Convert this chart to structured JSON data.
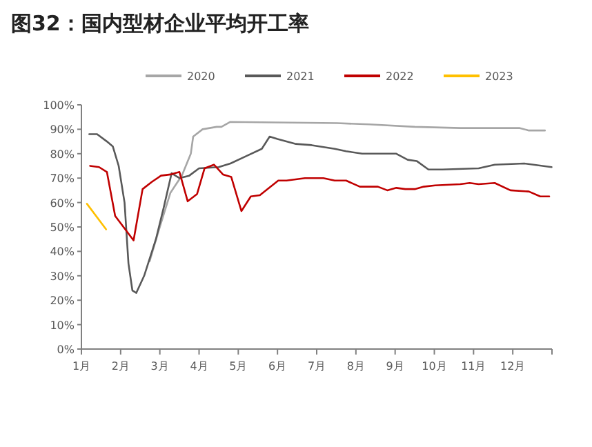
{
  "chart_data": {
    "type": "line",
    "title": "图32：国内型材企业平均开工率",
    "xlim": [
      1,
      13
    ],
    "xticks": [
      {
        "value": 1,
        "label": "1月"
      },
      {
        "value": 2,
        "label": "2月"
      },
      {
        "value": 3,
        "label": "3月"
      },
      {
        "value": 4,
        "label": "4月"
      },
      {
        "value": 5,
        "label": "5月"
      },
      {
        "value": 6,
        "label": "6月"
      },
      {
        "value": 7,
        "label": "7月"
      },
      {
        "value": 8,
        "label": "8月"
      },
      {
        "value": 9,
        "label": "9月"
      },
      {
        "value": 10,
        "label": "10月"
      },
      {
        "value": 11,
        "label": "11月"
      },
      {
        "value": 12,
        "label": "12月"
      },
      {
        "value": 13,
        "label": null
      }
    ],
    "ylim": [
      0,
      100
    ],
    "yticks": [
      {
        "value": 0,
        "label": "0%"
      },
      {
        "value": 10,
        "label": "10%"
      },
      {
        "value": 20,
        "label": "20%"
      },
      {
        "value": 30,
        "label": "30%"
      },
      {
        "value": 40,
        "label": "40%"
      },
      {
        "value": 50,
        "label": "50%"
      },
      {
        "value": 60,
        "label": "60%"
      },
      {
        "value": 70,
        "label": "70%"
      },
      {
        "value": 80,
        "label": "80%"
      },
      {
        "value": 90,
        "label": "90%"
      },
      {
        "value": 100,
        "label": "100%"
      }
    ],
    "grid": false,
    "legend": "top",
    "marker": "none",
    "line_style": "solid",
    "series": [
      {
        "name": "2020",
        "color": "#a6a6a6",
        "x": [
          2.74,
          2.98,
          3.27,
          3.56,
          3.79,
          3.85,
          4.09,
          4.45,
          4.57,
          4.79,
          7.52,
          8.33,
          9.5,
          10.66,
          12.18,
          12.41,
          12.82
        ],
        "values": [
          36,
          49,
          64,
          71,
          80,
          87,
          90,
          91,
          91,
          93,
          92.5,
          92,
          91,
          90.5,
          90.5,
          89.5,
          89.5
        ]
      },
      {
        "name": "2021",
        "color": "#595959",
        "x": [
          1.2,
          1.4,
          1.65,
          1.8,
          1.95,
          2.1,
          2.2,
          2.3,
          2.4,
          2.6,
          2.9,
          3.1,
          3.3,
          3.5,
          3.75,
          4.0,
          4.5,
          4.8,
          5.2,
          5.6,
          5.8,
          6.0,
          6.47,
          6.87,
          7.46,
          7.75,
          8.16,
          9.03,
          9.32,
          9.55,
          9.85,
          10.2,
          11.13,
          11.54,
          12.29,
          12.99
        ],
        "values": [
          88,
          88,
          85,
          83,
          75,
          60,
          35,
          24,
          23,
          30,
          45,
          58,
          72,
          70,
          71,
          74,
          74.5,
          76,
          79,
          82,
          87,
          86,
          84,
          83.5,
          82,
          81,
          80,
          80,
          77.5,
          77,
          73.5,
          73.5,
          74,
          75.5,
          76,
          74.5
        ]
      },
      {
        "name": "2022",
        "color": "#c00000",
        "x": [
          1.22,
          1.45,
          1.65,
          1.86,
          2.33,
          2.56,
          2.8,
          3.03,
          3.27,
          3.5,
          3.71,
          3.95,
          4.14,
          4.38,
          4.61,
          4.82,
          5.08,
          5.32,
          5.55,
          6.02,
          6.23,
          6.7,
          7.17,
          7.46,
          7.75,
          8.1,
          8.56,
          8.8,
          9.03,
          9.26,
          9.5,
          9.73,
          10.02,
          10.66,
          10.9,
          11.13,
          11.54,
          11.94,
          12.41,
          12.7,
          12.93
        ],
        "values": [
          75,
          74.5,
          72.5,
          54.5,
          44.5,
          65.5,
          68.5,
          71,
          71.5,
          72.5,
          60.5,
          63.5,
          74,
          75.5,
          71.5,
          70.5,
          56.5,
          62.5,
          63,
          69,
          69,
          70,
          70,
          69,
          69,
          66.5,
          66.5,
          65,
          66,
          65.5,
          65.5,
          66.5,
          67,
          67.5,
          68,
          67.5,
          68,
          65,
          64.5,
          62.5,
          62.5
        ]
      },
      {
        "name": "2023",
        "color": "#ffc000",
        "x": [
          1.14,
          1.63
        ],
        "values": [
          59.5,
          49
        ]
      }
    ]
  }
}
